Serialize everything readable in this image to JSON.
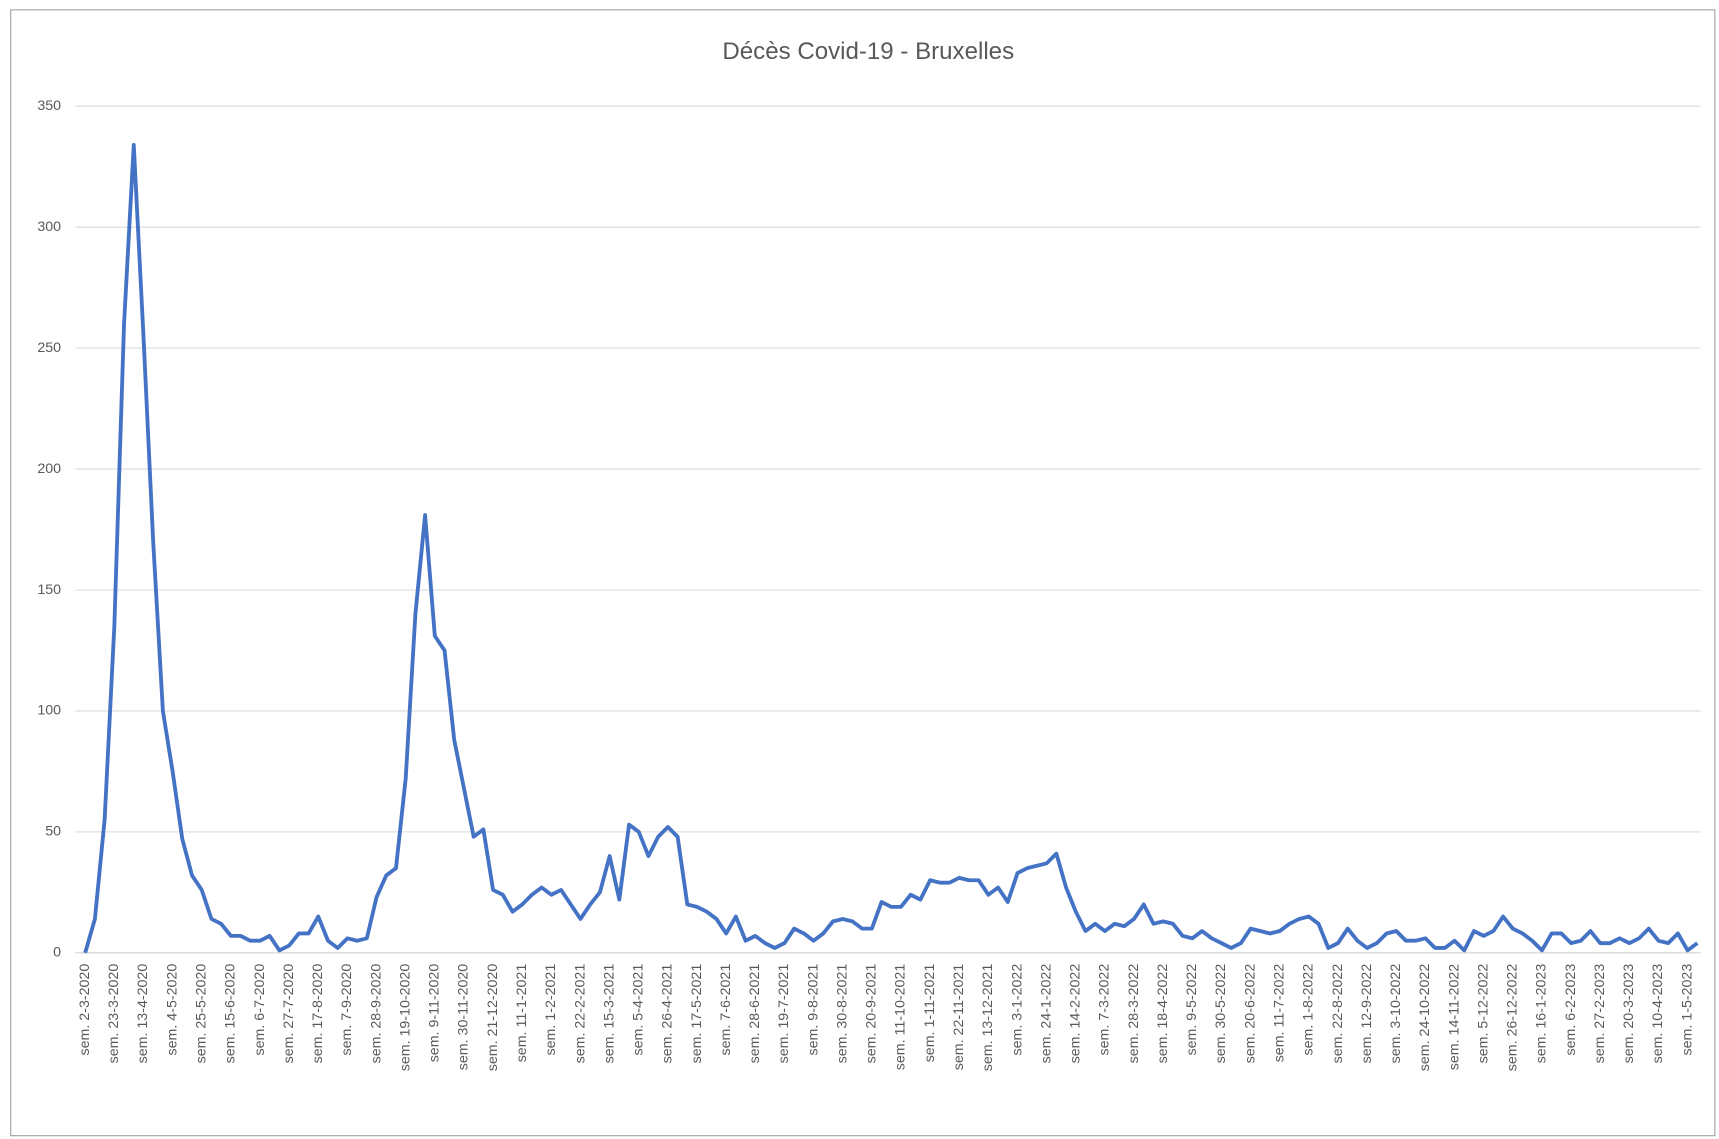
{
  "chart_data": {
    "type": "line",
    "title": "Décès Covid-19 - Bruxelles",
    "categories": [
      "sem. 2-3-2020",
      null,
      null,
      "sem. 23-3-2020",
      null,
      null,
      "sem. 13-4-2020",
      null,
      null,
      "sem. 4-5-2020",
      null,
      null,
      "sem. 25-5-2020",
      null,
      null,
      "sem. 15-6-2020",
      null,
      null,
      "sem. 6-7-2020",
      null,
      null,
      "sem. 27-7-2020",
      null,
      null,
      "sem. 17-8-2020",
      null,
      null,
      "sem. 7-9-2020",
      null,
      null,
      "sem. 28-9-2020",
      null,
      null,
      "sem. 19-10-2020",
      null,
      null,
      "sem. 9-11-2020",
      null,
      null,
      "sem. 30-11-2020",
      null,
      null,
      "sem. 21-12-2020",
      null,
      null,
      "sem. 11-1-2021",
      null,
      null,
      "sem. 1-2-2021",
      null,
      null,
      "sem. 22-2-2021",
      null,
      null,
      "sem. 15-3-2021",
      null,
      null,
      "sem. 5-4-2021",
      null,
      null,
      "sem. 26-4-2021",
      null,
      null,
      "sem. 17-5-2021",
      null,
      null,
      "sem. 7-6-2021",
      null,
      null,
      "sem. 28-6-2021",
      null,
      null,
      "sem. 19-7-2021",
      null,
      null,
      "sem. 9-8-2021",
      null,
      null,
      "sem. 30-8-2021",
      null,
      null,
      "sem. 20-9-2021",
      null,
      null,
      "sem. 11-10-2021",
      null,
      null,
      "sem. 1-11-2021",
      null,
      null,
      "sem. 22-11-2021",
      null,
      null,
      "sem. 13-12-2021",
      null,
      null,
      "sem. 3-1-2022",
      null,
      null,
      "sem. 24-1-2022",
      null,
      null,
      "sem. 14-2-2022",
      null,
      null,
      "sem. 7-3-2022",
      null,
      null,
      "sem. 28-3-2022",
      null,
      null,
      "sem. 18-4-2022",
      null,
      null,
      "sem. 9-5-2022",
      null,
      null,
      "sem. 30-5-2022",
      null,
      null,
      "sem. 20-6-2022",
      null,
      null,
      "sem. 11-7-2022",
      null,
      null,
      "sem. 1-8-2022",
      null,
      null,
      "sem. 22-8-2022",
      null,
      null,
      "sem. 12-9-2022",
      null,
      null,
      "sem. 3-10-2022",
      null,
      null,
      "sem. 24-10-2022",
      null,
      null,
      "sem. 14-11-2022",
      null,
      null,
      "sem. 5-12-2022",
      null,
      null,
      "sem. 26-12-2022",
      null,
      null,
      "sem. 16-1-2023",
      null,
      null,
      "sem. 6-2-2023",
      null,
      null,
      "sem. 27-2-2023",
      null,
      null,
      "sem. 20-3-2023",
      null,
      null,
      "sem. 10-4-2023",
      null,
      null,
      "sem. 1-5-2023",
      null
    ],
    "values": [
      0,
      14,
      55,
      135,
      260,
      334,
      255,
      170,
      100,
      75,
      47,
      32,
      26,
      14,
      12,
      7,
      7,
      5,
      5,
      7,
      1,
      3,
      8,
      8,
      15,
      5,
      2,
      6,
      5,
      6,
      23,
      32,
      35,
      72,
      140,
      181,
      131,
      125,
      88,
      68,
      48,
      51,
      26,
      24,
      17,
      20,
      24,
      27,
      24,
      26,
      20,
      14,
      20,
      25,
      40,
      22,
      53,
      50,
      40,
      48,
      52,
      48,
      20,
      19,
      17,
      14,
      8,
      15,
      5,
      7,
      4,
      2,
      4,
      10,
      8,
      5,
      8,
      13,
      14,
      13,
      10,
      10,
      21,
      19,
      19,
      24,
      22,
      30,
      29,
      29,
      31,
      30,
      30,
      24,
      27,
      21,
      33,
      35,
      36,
      37,
      41,
      27,
      17,
      9,
      12,
      9,
      12,
      11,
      14,
      20,
      12,
      13,
      12,
      7,
      6,
      9,
      6,
      4,
      2,
      4,
      10,
      9,
      8,
      9,
      12,
      14,
      15,
      12,
      2,
      4,
      10,
      5,
      2,
      4,
      8,
      9,
      5,
      5,
      6,
      2,
      2,
      5,
      1,
      9,
      7,
      9,
      15,
      10,
      8,
      5,
      1,
      8,
      8,
      4,
      5,
      9,
      4,
      4,
      6,
      4,
      6,
      10,
      5,
      4,
      8,
      1,
      4
    ],
    "color": "#4472c4",
    "ylim": [
      0,
      350
    ],
    "yticks": [
      0,
      50,
      100,
      150,
      200,
      250,
      300,
      350
    ],
    "grid": true
  }
}
